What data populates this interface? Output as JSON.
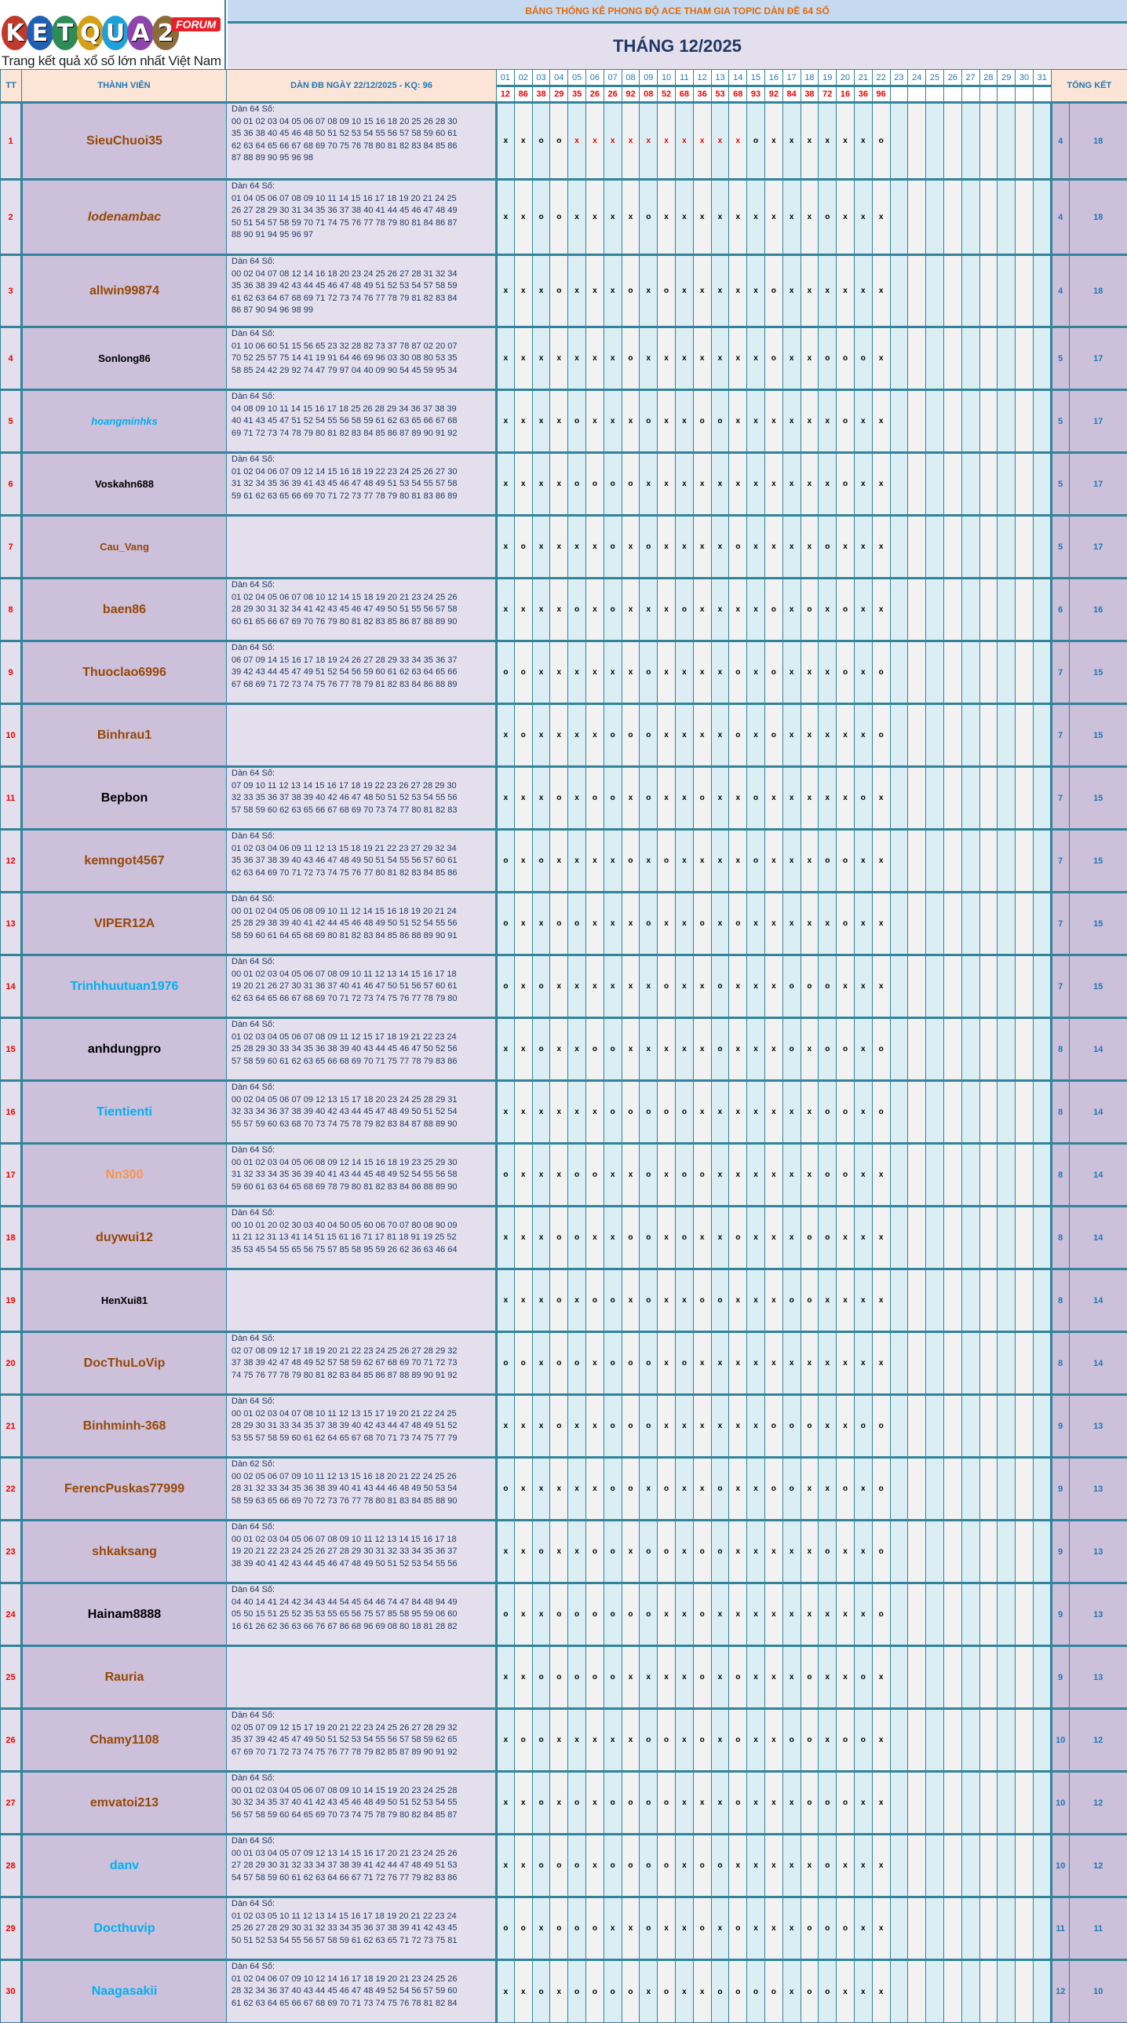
{
  "logo": {
    "letters": [
      "K",
      "E",
      "T",
      "Q",
      "U",
      "A",
      "2"
    ],
    "letter_colors": [
      "#c0392b",
      "#1f5fb4",
      "#2e8b57",
      "#d4a017",
      "#1fa0d8",
      "#8e44ad",
      "#8b6b3a"
    ],
    "badge": "FORUM",
    "tagline": "Trang kết quả xổ số lớn nhất Việt Nam"
  },
  "banner": "BẢNG THỐNG KÊ PHONG ĐỘ ACE THAM GIA TOPIC DÀN ĐỀ 64 SỐ",
  "month_title": "THÁNG 12/2025",
  "headers": {
    "tt": "TT",
    "member": "THÀNH VIÊN",
    "dan": "DÀN ĐB NGÀY 22/12/2025 - KQ: 96",
    "total": "TỔNG KẾT"
  },
  "days": [
    "01",
    "02",
    "03",
    "04",
    "05",
    "06",
    "07",
    "08",
    "09",
    "10",
    "11",
    "12",
    "13",
    "14",
    "15",
    "16",
    "17",
    "18",
    "19",
    "20",
    "21",
    "22",
    "23",
    "24",
    "25",
    "26",
    "27",
    "28",
    "29",
    "30",
    "31"
  ],
  "results": [
    "12",
    "86",
    "38",
    "29",
    "35",
    "26",
    "26",
    "92",
    "08",
    "52",
    "68",
    "36",
    "53",
    "68",
    "93",
    "92",
    "84",
    "38",
    "72",
    "16",
    "36",
    "96"
  ],
  "colors": {
    "brown": "#974806",
    "black": "#000000",
    "blue": "#00b0f0",
    "orange": "#f79646",
    "border": "#31849b",
    "red": "#ff0000"
  },
  "rows": [
    {
      "tt": "1",
      "name": "SieuChuoi35",
      "color": "brown",
      "dan": [
        "Dàn 64 Số:",
        "00 01 02 03 04 05 06 07 08 09 10 15 16 18 20 25 26 28 30",
        "35 36 38 40 45 46 48 50 51 52 53 54 55 56 57 58 59 60 61",
        "62 63 64 65 66 67 68 69 70 75 76 78 80 81 82 83 84 85 86",
        "87 88 89 90 95 96 98"
      ],
      "marks": "xxooxxxxxxxxxxoxxxxxxo",
      "red_days": [
        5,
        6,
        7,
        8,
        9,
        10,
        11,
        12,
        13,
        14
      ],
      "win": "4",
      "lose": "18"
    },
    {
      "tt": "2",
      "name": "lodenambac",
      "color": "brown",
      "italic": true,
      "dan": [
        "Dàn 64 Số:",
        "01 04 05 06 07 08 09 10 11 14 15 16 17 18 19 20 21 24 25",
        "26 27 28 29 30 31 34 35 36 37 38 40 41 44 45 46 47 48 49",
        "50 51 54 57 58 59 70 71 74 75 76 77 78 79 80 81 84 86 87",
        "88 90 91 94 95 96 97"
      ],
      "marks": "xxooxxxxoxxxxxxxxxoxxx",
      "win": "4",
      "lose": "18"
    },
    {
      "tt": "3",
      "name": "allwin99874",
      "color": "brown",
      "dan": [
        "Dàn 64 Số:",
        "00 02 04 07 08 12 14 16 18 20 23 24 25 26 27 28 31 32 34",
        "35 36 38 39 42 43 44 45 46 47 48 49 51 52 53 54 57 58 59",
        "61 62 63 64 67 68 69 71 72 73 74 76 77 78 79 81 82 83 84",
        "86 87 90 94 96 98 99"
      ],
      "marks": "xxxoxxxoxoxxxxxoxxxxxx",
      "win": "4",
      "lose": "18"
    },
    {
      "tt": "4",
      "name": "Sonlong86",
      "color": "black",
      "small": true,
      "dan": [
        "Dàn 64 Số:",
        "01 10 06 60 51 15 56 65 23 32 28 82 73 37 78 87 02 20 07",
        "70 52 25 57 75 14 41 19 91 64 46 69 96 03 30 08 80 53 35",
        "58 85 24 42 29 92 74 47 79 97 04 40 09 90 54 45 59 95 34"
      ],
      "marks": "xxxxxxxoxxxxxxxoxxooox",
      "win": "5",
      "lose": "17"
    },
    {
      "tt": "5",
      "name": "hoangminhks",
      "color": "blue",
      "italic": true,
      "small": true,
      "dan": [
        "Dàn 64 Số:",
        "04 08 09 10 11 14 15 16 17 18 25 26 28 29 34 36 37 38 39",
        "40 41 43 45 47 51 52 54 55 56 58 59 61 62 63 65 66 67 68",
        "69 71 72 73 74 78 79 80 81 82 83 84 85 86 87 89 90 91 92"
      ],
      "marks": "xxxxoxxxoxxooxxxxxxoxx",
      "win": "5",
      "lose": "17"
    },
    {
      "tt": "6",
      "name": "Voskahn688",
      "color": "black",
      "small": true,
      "dan": [
        "Dàn 64 Số:",
        "01 02 04 06 07 09 12 14 15 16 18 19 22 23 24 25 26 27 30",
        "31 32 34 35 36 39 41 43 45 46 47 48 49 51 53 54 55 57 58",
        "59 61 62 63 65 66 69 70 71 72 73 77 78 79 80 81 83 86 89"
      ],
      "marks": "xxxxooooxxxxxxxxxxxoxx",
      "win": "5",
      "lose": "17"
    },
    {
      "tt": "7",
      "name": "Cau_Vang",
      "color": "brown",
      "small": true,
      "dan": [],
      "marks": "xoxxxxoxoxxxxoxxxxoxxx",
      "win": "5",
      "lose": "17"
    },
    {
      "tt": "8",
      "name": "baen86",
      "color": "brown",
      "dan": [
        "Dàn 64 Số:",
        "01 02 04 05 06 07 08 10 12 14 15 18 19 20 21 23 24 25 26",
        "28 29 30 31 32 34 41 42 43 45 46 47 49 50 51 55 56 57 58",
        "60 61 65 66 67 69 70 76 79 80 81 82 83 85 86 87 88 89 90"
      ],
      "marks": "xxxxoxoxxxoxxxxoxoxoxx",
      "win": "6",
      "lose": "16"
    },
    {
      "tt": "9",
      "name": "Thuoclao6996",
      "color": "brown",
      "dan": [
        "Dàn 64 Số:",
        "06 07 09 14 15 16 17 18 19 24 26 27 28 29 33 34 35 36 37",
        "39 42 43 44 45 47 49 51 52 54 56 59 60 61 62 63 64 65 66",
        "67 68 69 71 72 73 74 75 76 77 78 79 81 82 83 84 86 88 89"
      ],
      "marks": "ooxxxxxxoxxxxoxoxxxoxo",
      "win": "7",
      "lose": "15"
    },
    {
      "tt": "10",
      "name": "Binhrau1",
      "color": "brown",
      "dan": [],
      "marks": "xoxxxxoooxxxxoxoxxxxxo",
      "win": "7",
      "lose": "15"
    },
    {
      "tt": "11",
      "name": "Bepbon",
      "color": "black",
      "dan": [
        "Dàn 64 Số:",
        "07 09 10 11 12 13 14 15 16 17 18 19 22 23 26 27 28 29 30",
        "32 33 35 36 37 38 39 40 42 46 47 48 50 51 52 53 54 55 56",
        "57 58 59 60 62 63 65 66 67 68 69 70 73 74 77 80 81 82 83"
      ],
      "marks": "xxxoxooxoxxoxxoxxxxxox",
      "win": "7",
      "lose": "15"
    },
    {
      "tt": "12",
      "name": "kemngot4567",
      "color": "brown",
      "dan": [
        "Dàn 64 Số:",
        "01 02 03 04 06 09 11 12 13 15 18 19 21 22 23 27 29 32 34",
        "35 36 37 38 39 40 43 46 47 48 49 50 51 54 55 56 57 60 61",
        "62 63 64 69 70 71 72 73 74 75 76 77 80 81 82 83 84 85 86"
      ],
      "marks": "oxoxxxxoxoxxxxoxxxooxx",
      "win": "7",
      "lose": "15"
    },
    {
      "tt": "13",
      "name": "VIPER12A",
      "color": "brown",
      "dan": [
        "Dàn 64 Số:",
        "00 01 02 04 05 06 08 09 10 11 12 14 15 16 18 19 20 21 24",
        "25 28 29 38 39 40 41 42 44 45 46 48 49 50 51 52 54 55 56",
        "58 59 60 61 64 65 68 69 80 81 82 83 84 85 86 88 89 90 91"
      ],
      "marks": "oxxooxxxoxxoxoxxxxxoxx",
      "win": "7",
      "lose": "15"
    },
    {
      "tt": "14",
      "name": "Trinhhuutuan1976",
      "color": "blue",
      "dan": [
        "Dàn 64 Số:",
        "00 01 02 03 04 05 06 07 08 09 10 11 12 13 14 15 16 17 18",
        "19 20 21 26 27 30 31 36 37 40 41 46 47 50 51 56 57 60 61",
        "62 63 64 65 66 67 68 69 70 71 72 73 74 75 76 77 78 79 80"
      ],
      "marks": "oxoxxxxxxoxxoxxxoooxxx",
      "win": "7",
      "lose": "15"
    },
    {
      "tt": "15",
      "name": "anhdungpro",
      "color": "black",
      "dan": [
        "Dàn 64 Số:",
        "01 02 03 04 05 06 07 08 09 11 12 15 17 18 19 21 22 23 24",
        "25 28 29 30 33 34 35 36 38 39 40 43 44 45 46 47 50 52 56",
        "57 58 59 60 61 62 63 65 66 68 69 70 71 75 77 78 79 83 86"
      ],
      "marks": "xxoxxooxxxxxoxxxoxooxo",
      "win": "8",
      "lose": "14"
    },
    {
      "tt": "16",
      "name": "Tientienti",
      "color": "blue",
      "dan": [
        "Dàn 64 Số:",
        "00 02 04 05 06 07 09 12 13 15 17 18 20 23 24 25 28 29 31",
        "32 33 34 36 37 38 39 40 42 43 44 45 47 48 49 50 51 52 54",
        "55 57 59 60 63 68 70 73 74 75 78 79 82 83 84 87 88 89 90"
      ],
      "marks": "xxxxxxoooooxxxxxxxooxo",
      "win": "8",
      "lose": "14"
    },
    {
      "tt": "17",
      "name": "Nn300",
      "color": "orange",
      "dan": [
        "Dàn 64 Số:",
        "00 01 02 03 04 05 06 08 09 12 14 15 16 18 19 23 25 29 30",
        "31 32 33 34 35 36 39 40 41 43 44 45 48 49 52 54 55 56 58",
        "59 60 61 63 64 65 68 69 78 79 80 81 82 83 84 86 88 89 90"
      ],
      "marks": "oxxxooxxoxooxxxxxxooxx",
      "win": "8",
      "lose": "14"
    },
    {
      "tt": "18",
      "name": "duywui12",
      "color": "brown",
      "dan": [
        "Dàn 64 Số:",
        "00 10 01 20 02 30 03 40 04 50 05 60 06 70 07 80 08 90 09",
        "11 21 12 31 13 41 14 51 15 61 16 71 17 81 18 91 19 25 52",
        "35 53 45 54 55 65 56 75 57 85 58 95 59 26 62 36 63 46 64"
      ],
      "marks": "xxxooxxooxoxxoxxxooxxx",
      "win": "8",
      "lose": "14"
    },
    {
      "tt": "19",
      "name": "HenXui81",
      "color": "black",
      "small": true,
      "dan": [],
      "marks": "xxxoxooxoxxooxxxooxxxx",
      "win": "8",
      "lose": "14"
    },
    {
      "tt": "20",
      "name": "DocThuLoVip",
      "color": "brown",
      "dan": [
        "Dàn 64 Số:",
        "02 07 08 09 12 17 18 19 20 21 22 23 24 25 26 27 28 29 32",
        "37 38 39 42 47 48 49 52 57 58 59 62 67 68 69 70 71 72 73",
        "74 75 76 77 78 79 80 81 82 83 84 85 86 87 88 89 90 91 92"
      ],
      "marks": "ooxooxoooxoxxxxxxxxxxx",
      "win": "8",
      "lose": "14"
    },
    {
      "tt": "21",
      "name": "Binhminh-368",
      "color": "brown",
      "dan": [
        "Dàn 64 Số:",
        "00 01 02 03 04 07 08 10 11 12 13 15 17 19 20 21 22 24 25",
        "28 29 30 31 33 34 35 37 38 39 40 42 43 44 47 48 49 51 52",
        "53 55 57 58 59 60 61 62 64 65 67 68 70 71 73 74 75 77 79"
      ],
      "marks": "xxxoxxoooxxxxxxoooxxoo",
      "win": "9",
      "lose": "13"
    },
    {
      "tt": "22",
      "name": "FerencPuskas77999",
      "color": "brown",
      "dan": [
        "Dàn 62 Số:",
        "00 02 05 06 07 09 10 11 12 13 15 16 18 20 21 22 24 25 26",
        "28 31 32 33 34 35 36 38 39 40 41 43 44 46 48 49 50 53 54",
        "58 59 63 65 66 69 70 72 73 76 77 78 80 81 83 84 85 88 90"
      ],
      "marks": "oxxxxxooxoxxoxxooxxoxo",
      "win": "9",
      "lose": "13"
    },
    {
      "tt": "23",
      "name": "shkaksang",
      "color": "brown",
      "dan": [
        "Dàn 64 Số:",
        "00 01 02 03 04 05 06 07 08 09 10 11 12 13 14 15 16 17 18",
        "19 20 21 22 23 24 25 26 27 28 29 30 31 32 33 34 35 36 37",
        "38 39 40 41 42 43 44 45 46 47 48 49 50 51 52 53 54 55 56"
      ],
      "marks": "xxoxxooxooxooxxxxxoxxo",
      "win": "9",
      "lose": "13"
    },
    {
      "tt": "24",
      "name": "Hainam8888",
      "color": "black",
      "dan": [
        "Dàn 64 Số:",
        "04 40 14 41 24 42 34 43 44 54 45 64 46 74 47 84 48 94 49",
        "05 50 15 51 25 52 35 53 55 65 56 75 57 85 58 95 59 06 60",
        "16 61 26 62 36 63 66 76 67 86 68 96 69 08 80 18 81 28 82"
      ],
      "marks": "oxxooooooxxoxxxxxxxxxo",
      "win": "9",
      "lose": "13"
    },
    {
      "tt": "25",
      "name": "Rauria",
      "color": "brown",
      "dan": [],
      "marks": "xxoooooxxxxoxoxxxoxxox",
      "win": "9",
      "lose": "13"
    },
    {
      "tt": "26",
      "name": "Chamy1108",
      "color": "brown",
      "dan": [
        "Dàn 64 Số:",
        "02 05 07 09 12 15 17 19 20 21 22 23 24 25 26 27 28 29 32",
        "35 37 39 42 45 47 49 50 51 52 53 54 55 56 57 58 59 62 65",
        "67 69 70 71 72 73 74 75 76 77 78 79 82 85 87 89 90 91 92"
      ],
      "marks": "xooxxxxxooxoxoxxooxoox",
      "win": "10",
      "lose": "12"
    },
    {
      "tt": "27",
      "name": "emvatoi213",
      "color": "brown",
      "dan": [
        "Dàn 64 Số:",
        "00 01 02 03 04 05 06 07 08 09 10 14 15 19 20 23 24 25 28",
        "30 32 34 35 37 40 41 42 43 45 46 48 49 50 51 52 53 54 55",
        "56 57 58 59 60 64 65 69 70 73 74 75 78 79 80 82 84 85 87"
      ],
      "marks": "xxoxoxooooxxxoxxxoooxx",
      "win": "10",
      "lose": "12"
    },
    {
      "tt": "28",
      "name": "danv",
      "color": "blue",
      "dan": [
        "Dàn 64 Số:",
        "00 01 03 04 05 07 09 12 13 14 15 16 17 20 21 23 24 25 26",
        "27 28 29 30 31 32 33 34 37 38 39 41 42 44 47 48 49 51 53",
        "54 57 58 59 60 61 62 63 64 66 67 71 72 76 77 79 82 83 86"
      ],
      "marks": "xxoooxooooxooxxxxxoxxx",
      "win": "10",
      "lose": "12"
    },
    {
      "tt": "29",
      "name": "Docthuvip",
      "color": "blue",
      "dan": [
        "Dàn 64 Số:",
        "01 02 03 05 10 11 12 13 14 15 16 17 18 19 20 21 22 23 24",
        "25 26 27 28 29 30 31 32 33 34 35 36 37 38 39 41 42 43 45",
        "50 51 52 53 54 55 56 57 58 59 61 62 63 65 71 72 73 75 81"
      ],
      "marks": "ooxoooxxoxxoxoxxxoooxx",
      "win": "11",
      "lose": "11"
    },
    {
      "tt": "30",
      "name": "Naagasakii",
      "color": "blue",
      "dan": [
        "Dàn 64 Số:",
        "01 02 04 06 07 09 10 12 14 16 17 18 19 20 21 23 24 25 26",
        "28 32 34 36 37 40 43 44 45 46 47 48 49 52 54 56 57 59 60",
        "61 62 63 64 65 66 67 68 69 70 71 73 74 75 76 78 81 82 84"
      ],
      "marks": "xxoxooooxoxxooooxooxxx",
      "win": "12",
      "lose": "10"
    }
  ]
}
